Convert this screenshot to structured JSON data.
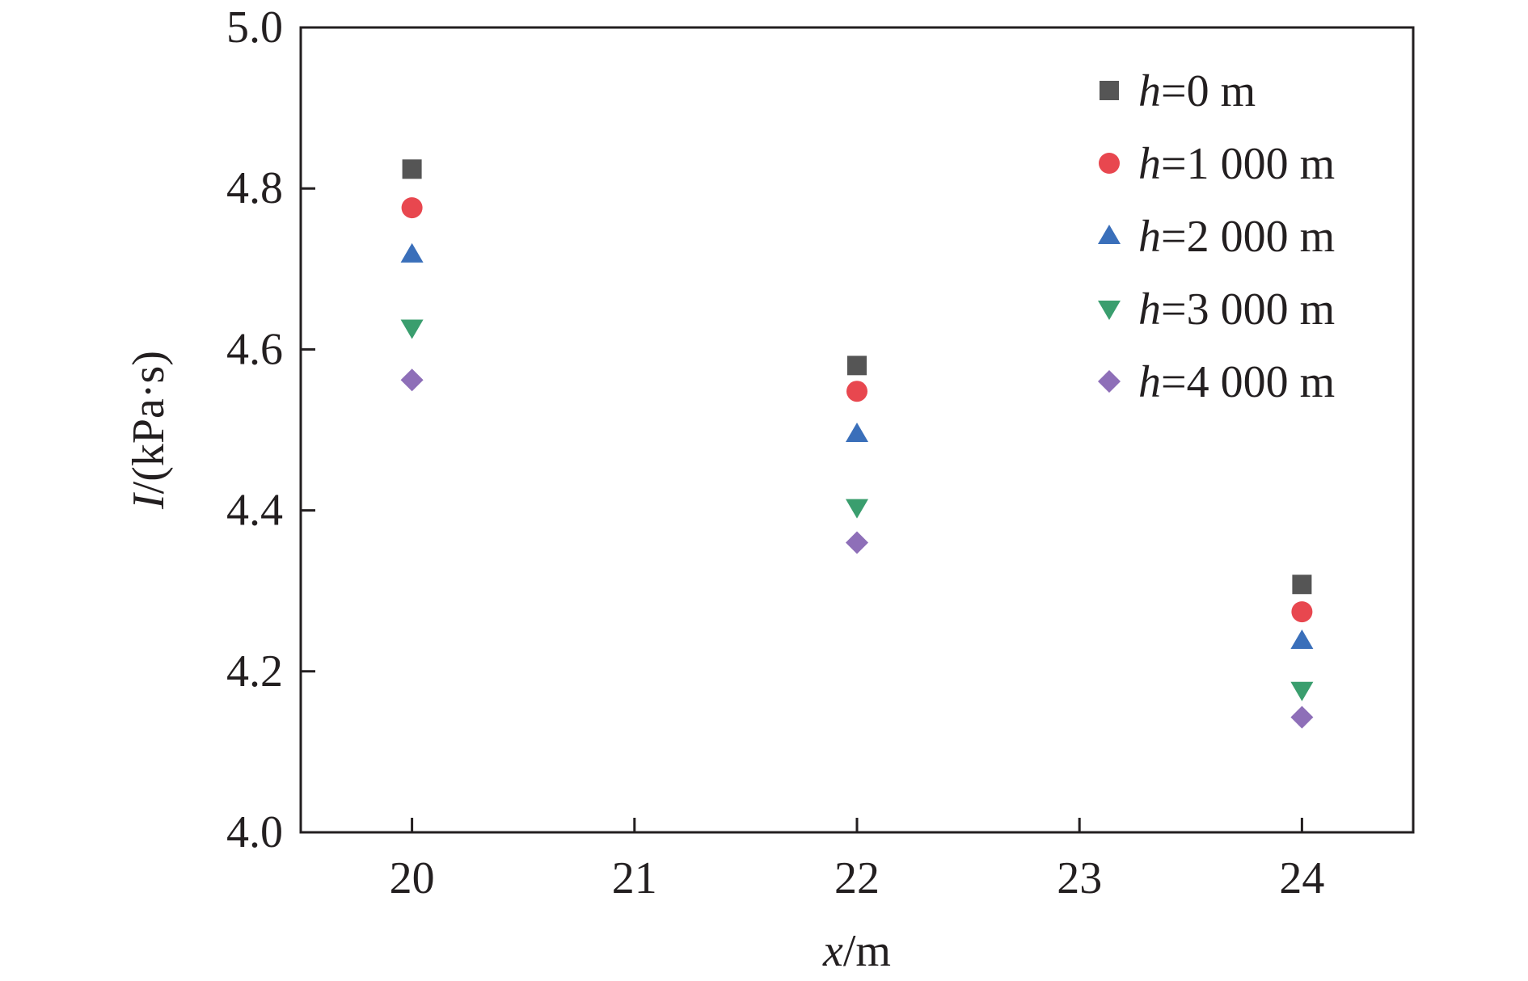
{
  "chart_data": {
    "type": "scatter",
    "title": "",
    "xlabel": {
      "var": "x",
      "rest": "/m"
    },
    "ylabel": {
      "var": "I",
      "rest": "/(kPa·s)"
    },
    "xlim": [
      19.5,
      24.5
    ],
    "ylim": [
      4.0,
      5.0
    ],
    "x_ticks": [
      20,
      21,
      22,
      23,
      24
    ],
    "x_tick_labels": [
      "20",
      "21",
      "22",
      "23",
      "24"
    ],
    "y_ticks": [
      4.0,
      4.2,
      4.4,
      4.6,
      4.8,
      5.0
    ],
    "y_tick_labels": [
      "4.0",
      "4.2",
      "4.4",
      "4.6",
      "4.8",
      "5.0"
    ],
    "grid": false,
    "legend_position": "top-right",
    "x": [
      20,
      22,
      24
    ],
    "series": [
      {
        "var": "h",
        "rest": "=0 m",
        "marker": "square",
        "color": "#555555",
        "values": [
          4.824,
          4.58,
          4.308
        ]
      },
      {
        "var": "h",
        "rest": "=1 000 m",
        "marker": "circle",
        "color": "#e8474f",
        "values": [
          4.776,
          4.548,
          4.274
        ]
      },
      {
        "var": "h",
        "rest": "=2 000 m",
        "marker": "triangle-up",
        "color": "#3a6fba",
        "values": [
          4.718,
          4.495,
          4.238
        ]
      },
      {
        "var": "h",
        "rest": "=3 000 m",
        "marker": "triangle-down",
        "color": "#3a9e6e",
        "values": [
          4.627,
          4.404,
          4.177
        ]
      },
      {
        "var": "h",
        "rest": "=4 000 m",
        "marker": "diamond",
        "color": "#8e6fb8",
        "values": [
          4.562,
          4.36,
          4.143
        ]
      }
    ]
  }
}
